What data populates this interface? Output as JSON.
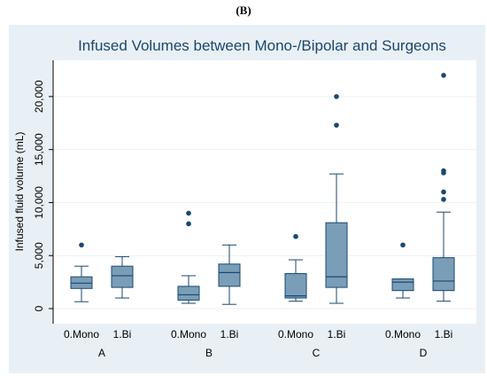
{
  "panel_label": "(B)",
  "chart_data": {
    "type": "box",
    "title": "Infused Volumes between Mono-/Bipolar and Surgeons",
    "ylabel": "Infused fluid volume (mL)",
    "xlabel": "",
    "ylim": [
      0,
      23000
    ],
    "yticks": [
      0,
      5000,
      10000,
      15000,
      20000
    ],
    "ytick_labels": [
      "0",
      "5,000",
      "10,000",
      "15,000",
      "20,000"
    ],
    "groups": [
      "A",
      "B",
      "C",
      "D"
    ],
    "subcategories": [
      "0.Mono",
      "1.Bi"
    ],
    "grid": true,
    "colors": {
      "box_fill": "#7a9eb8",
      "box_stroke": "#1a476f",
      "outlier": "#1a476f",
      "title": "#1a476f",
      "background": "#e9f0f5"
    },
    "boxes": [
      {
        "group": "A",
        "category": "0.Mono",
        "whisker_low": 650,
        "q1": 1900,
        "median": 2400,
        "q3": 3000,
        "whisker_high": 4000,
        "outliers": [
          6000
        ]
      },
      {
        "group": "A",
        "category": "1.Bi",
        "whisker_low": 1000,
        "q1": 2000,
        "median": 3100,
        "q3": 4000,
        "whisker_high": 4900,
        "outliers": []
      },
      {
        "group": "B",
        "category": "0.Mono",
        "whisker_low": 500,
        "q1": 800,
        "median": 1300,
        "q3": 2100,
        "whisker_high": 3100,
        "outliers": [
          8000,
          9000
        ]
      },
      {
        "group": "B",
        "category": "1.Bi",
        "whisker_low": 400,
        "q1": 2100,
        "median": 3400,
        "q3": 4200,
        "whisker_high": 6000,
        "outliers": []
      },
      {
        "group": "C",
        "category": "0.Mono",
        "whisker_low": 700,
        "q1": 1000,
        "median": 1200,
        "q3": 3300,
        "whisker_high": 4600,
        "outliers": [
          6800
        ]
      },
      {
        "group": "C",
        "category": "1.Bi",
        "whisker_low": 500,
        "q1": 2000,
        "median": 3000,
        "q3": 8100,
        "whisker_high": 12700,
        "outliers": [
          17300,
          20000
        ]
      },
      {
        "group": "D",
        "category": "0.Mono",
        "whisker_low": 1000,
        "q1": 1700,
        "median": 2500,
        "q3": 2800,
        "whisker_high": 2800,
        "outliers": [
          6000
        ]
      },
      {
        "group": "D",
        "category": "1.Bi",
        "whisker_low": 700,
        "q1": 1700,
        "median": 2600,
        "q3": 4800,
        "whisker_high": 9100,
        "outliers": [
          10300,
          11000,
          12800,
          13000,
          22000
        ]
      }
    ]
  }
}
